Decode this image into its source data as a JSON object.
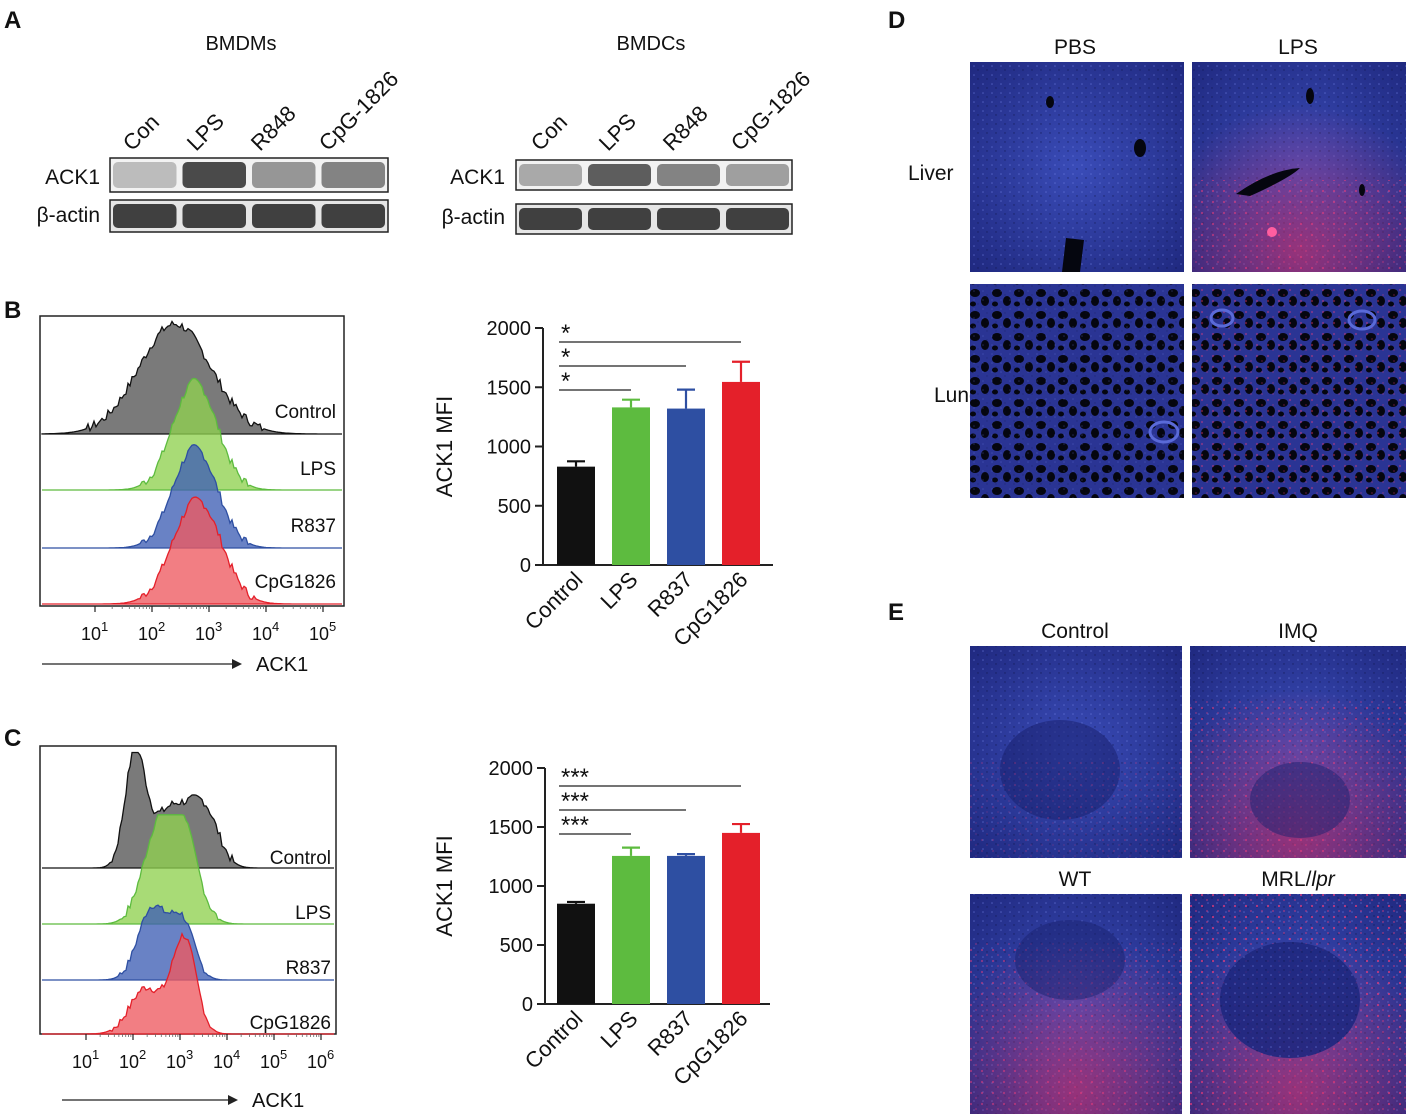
{
  "panels": {
    "A": "A",
    "B": "B",
    "C": "C",
    "D": "D",
    "E": "E"
  },
  "blot": {
    "left": {
      "title": "BMDMs",
      "lanes": [
        "Con",
        "LPS",
        "R848",
        "CpG-1826"
      ],
      "rows": [
        "ACK1",
        "β-actin"
      ],
      "ack1_intensity": [
        0.25,
        0.85,
        0.45,
        0.55
      ]
    },
    "right": {
      "title": "BMDCs",
      "lanes": [
        "Con",
        "LPS",
        "R848",
        "CpG-1826"
      ],
      "rows": [
        "ACK1",
        "β-actin"
      ],
      "ack1_intensity": [
        0.35,
        0.75,
        0.55,
        0.4
      ]
    }
  },
  "flow": {
    "B": {
      "labels": [
        "Control",
        "LPS",
        "R837",
        "CpG1826"
      ],
      "xlabel": "ACK1",
      "ticks": [
        {
          "base": "10",
          "exp": "1"
        },
        {
          "base": "10",
          "exp": "2"
        },
        {
          "base": "10",
          "exp": "3"
        },
        {
          "base": "10",
          "exp": "4"
        },
        {
          "base": "10",
          "exp": "5"
        }
      ]
    },
    "C": {
      "labels": [
        "Control",
        "LPS",
        "R837",
        "CpG1826"
      ],
      "xlabel": "ACK1",
      "ticks": [
        {
          "base": "10",
          "exp": "1"
        },
        {
          "base": "10",
          "exp": "2"
        },
        {
          "base": "10",
          "exp": "3"
        },
        {
          "base": "10",
          "exp": "4"
        },
        {
          "base": "10",
          "exp": "5"
        },
        {
          "base": "10",
          "exp": "6"
        }
      ]
    }
  },
  "chart_data": [
    {
      "type": "bar",
      "panel": "B",
      "categories": [
        "Control",
        "LPS",
        "R837",
        "CpG1826"
      ],
      "values": [
        830,
        1330,
        1320,
        1545
      ],
      "errors": [
        45,
        65,
        160,
        170
      ],
      "ylabel": "ACK1 MFI",
      "ylim": [
        0,
        2000
      ],
      "yticks": [
        0,
        500,
        1000,
        1500,
        2000
      ],
      "ytick_labels": [
        "0",
        "500",
        "1000",
        "1500",
        "2000"
      ],
      "colors": [
        "#111111",
        "#5dbb3f",
        "#2e4fa2",
        "#e4202a"
      ],
      "significance": [
        {
          "from": 0,
          "to": 1,
          "label": "*"
        },
        {
          "from": 0,
          "to": 2,
          "label": "*"
        },
        {
          "from": 0,
          "to": 3,
          "label": "*"
        }
      ]
    },
    {
      "type": "bar",
      "panel": "C",
      "categories": [
        "Control",
        "LPS",
        "R837",
        "CpG1826"
      ],
      "values": [
        850,
        1255,
        1255,
        1450
      ],
      "errors": [
        15,
        70,
        15,
        75
      ],
      "ylabel": "ACK1 MFI",
      "ylim": [
        0,
        2000
      ],
      "yticks": [
        0,
        500,
        1000,
        1500,
        2000
      ],
      "ytick_labels": [
        "0",
        "500",
        "1000",
        "1500",
        "2000"
      ],
      "colors": [
        "#111111",
        "#5dbb3f",
        "#2e4fa2",
        "#e4202a"
      ],
      "significance": [
        {
          "from": 0,
          "to": 1,
          "label": "***"
        },
        {
          "from": 0,
          "to": 2,
          "label": "***"
        },
        {
          "from": 0,
          "to": 3,
          "label": "***"
        }
      ]
    }
  ],
  "micro": {
    "D": {
      "columns": [
        "PBS",
        "LPS"
      ],
      "rows": [
        "Liver",
        "Lung"
      ]
    },
    "E": {
      "top_titles": [
        "Control",
        "IMQ"
      ],
      "bottom_titles": [
        "WT",
        "MRL/",
        "lpr"
      ]
    }
  }
}
